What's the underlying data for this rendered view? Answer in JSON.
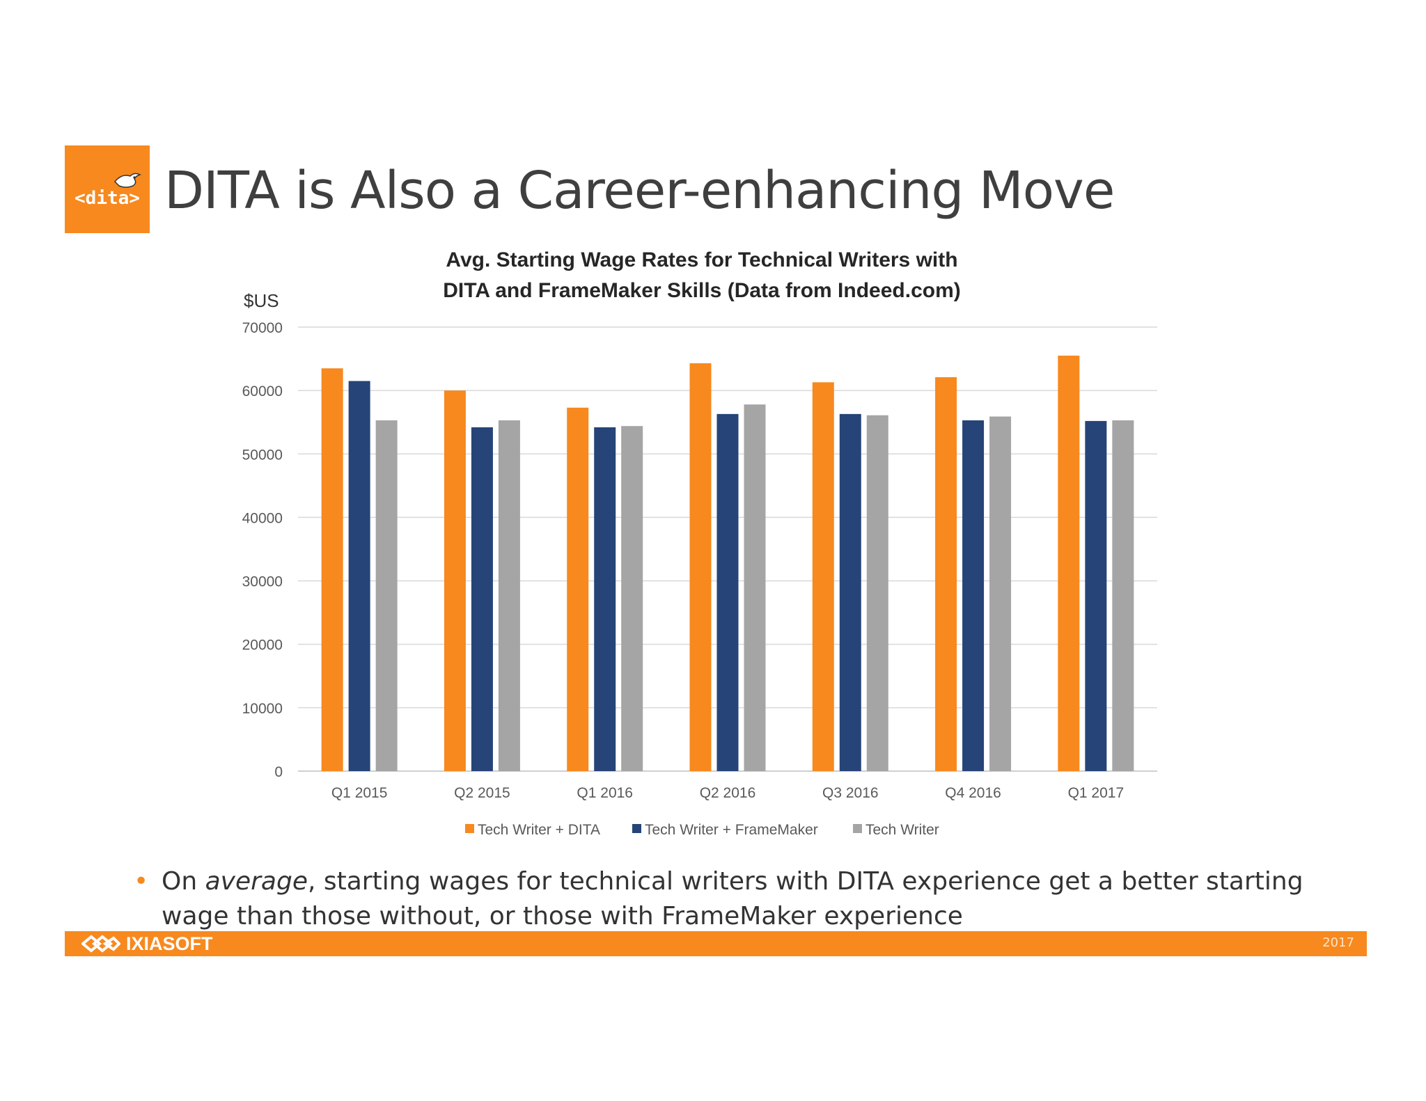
{
  "slide": {
    "title": "DITA is Also a Career-enhancing Move",
    "logo_text": "<dita>",
    "bullet_prefix": "On ",
    "bullet_emphasis": "average",
    "bullet_rest": ", starting wages for technical writers with DITA experience get a better starting wage than those without, or those with FrameMaker experience"
  },
  "footer": {
    "brand": "IXIASOFT",
    "year": "2017"
  },
  "colors": {
    "accent": "#f7891f",
    "dita": "#f7891f",
    "framemaker": "#264478",
    "techwriter": "#a5a5a5"
  },
  "chart_data": {
    "type": "bar",
    "title_line1": "Avg. Starting Wage Rates for Technical Writers with",
    "title_line2": "DITA and FrameMaker Skills (Data from Indeed.com)",
    "ylabel": "$US",
    "xlabel": "",
    "ylim": [
      0,
      70000
    ],
    "yticks": [
      0,
      10000,
      20000,
      30000,
      40000,
      50000,
      60000,
      70000
    ],
    "grid": true,
    "legend_position": "bottom",
    "categories": [
      "Q1 2015",
      "Q2 2015",
      "Q1 2016",
      "Q2 2016",
      "Q3 2016",
      "Q4 2016",
      "Q1 2017"
    ],
    "series": [
      {
        "name": "Tech Writer + DITA",
        "color": "#f7891f",
        "values": [
          63500,
          60000,
          57300,
          64300,
          61300,
          62100,
          65500
        ]
      },
      {
        "name": "Tech Writer + FrameMaker",
        "color": "#264478",
        "values": [
          61500,
          54200,
          54200,
          56300,
          56300,
          55300,
          55200
        ]
      },
      {
        "name": "Tech Writer",
        "color": "#a5a5a5",
        "values": [
          55300,
          55300,
          54400,
          57800,
          56100,
          55900,
          55300
        ]
      }
    ]
  }
}
